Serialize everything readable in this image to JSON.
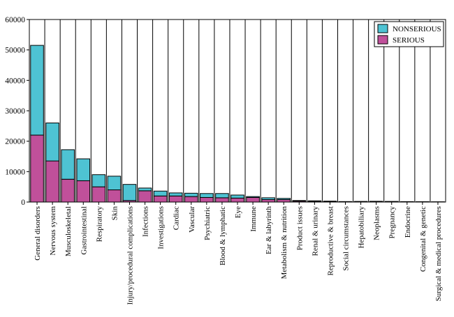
{
  "chart_data": {
    "type": "bar",
    "stacked": true,
    "categories": [
      "General disorders",
      "Nervous system",
      "Musculoskeletal",
      "Gastrointestinal",
      "Respiratory",
      "Skin",
      "Injury/procedural complications",
      "Infections",
      "Investigations",
      "Cardiac",
      "Vascular",
      "Psychiatric",
      "Blood & lymphatic",
      "Eye",
      "Immune",
      "Ear & labyrinth",
      "Metabolism & nutrition",
      "Product issues",
      "Renal & urinary",
      "Reproductive & breast",
      "Social circumstances",
      "Hepatobiliary",
      "Neoplasms",
      "Pregnancy",
      "Endocrine",
      "Congenital & genetic",
      "Surgical & medical procedures"
    ],
    "series": [
      {
        "name": "SERIOUS",
        "color": "#c0509a",
        "values": [
          22000,
          13500,
          7500,
          7000,
          5000,
          4000,
          500,
          3700,
          2000,
          2000,
          1800,
          1500,
          1400,
          1300,
          1500,
          800,
          800,
          300,
          200,
          200,
          60,
          150,
          200,
          150,
          80,
          60,
          50
        ]
      },
      {
        "name": "NONSERIOUS",
        "color": "#4ec3d3",
        "values": [
          29500,
          12500,
          9700,
          7200,
          4000,
          4500,
          5300,
          900,
          1600,
          1000,
          1100,
          1300,
          1400,
          1000,
          300,
          600,
          400,
          200,
          200,
          100,
          100,
          50,
          50,
          50,
          60,
          60,
          30
        ]
      }
    ],
    "ylim": [
      0,
      60000
    ],
    "yticks": [
      "0",
      "10000",
      "20000",
      "30000",
      "40000",
      "50000",
      "60000"
    ],
    "legend": {
      "position": "top-right",
      "entries": [
        "NONSERIOUS",
        "SERIOUS"
      ]
    },
    "grid": {
      "vertical": true,
      "horizontal": false
    },
    "title": "",
    "xlabel": "",
    "ylabel": ""
  }
}
